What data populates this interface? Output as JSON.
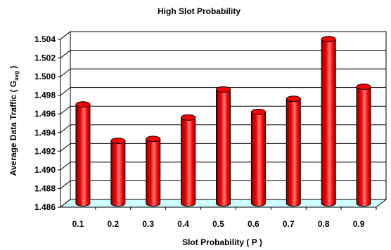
{
  "chart_data": {
    "type": "bar",
    "title": "High Slot Probability",
    "xlabel": "Slot Probability ( P )",
    "ylabel_main": "Average Data Traffic ( G",
    "ylabel_sub": "avg",
    "ylabel_end": " )",
    "categories": [
      "0.1",
      "0.2",
      "0.3",
      "0.4",
      "0.5",
      "0.6",
      "0.7",
      "0.8",
      "0.9"
    ],
    "values": [
      1.4966,
      1.4927,
      1.4929,
      1.4952,
      1.4982,
      1.4958,
      1.4972,
      1.5036,
      1.4985
    ],
    "ylim": [
      1.486,
      1.504
    ],
    "yticks": [
      "1.486",
      "1.488",
      "1.490",
      "1.492",
      "1.494",
      "1.496",
      "1.498",
      "1.500",
      "1.502",
      "1.504"
    ],
    "grid": true,
    "legend": "none",
    "colors": {
      "bar": "#ff0000",
      "bar_dark": "#8a0000",
      "bar_light": "#ff8080",
      "floor": "#ccffff",
      "grid": "#000000"
    }
  }
}
